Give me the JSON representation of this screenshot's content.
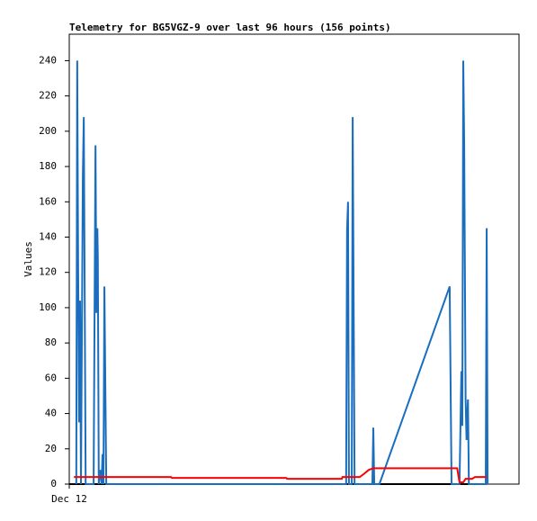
{
  "chart_data": {
    "type": "line",
    "title": "Telemetry for BG5VGZ-9 over last 96 hours (156 points)",
    "y_label": "Values",
    "xlim": [
      0,
      96
    ],
    "xticks": [
      {
        "value": 0,
        "label": "Dec 12"
      }
    ],
    "ylim": [
      0,
      255
    ],
    "yticks": [
      0,
      20,
      40,
      60,
      80,
      100,
      120,
      140,
      160,
      180,
      200,
      220,
      240
    ],
    "grid": false,
    "series": [
      {
        "color": "#000000",
        "x": [
          0,
          89.1
        ],
        "values": [
          0,
          0
        ]
      },
      {
        "color": "#1a6ebd",
        "x": [
          1.5,
          1.7,
          1.9,
          2.1,
          2.3,
          2.5,
          2.9,
          3.1,
          3.3,
          3.5,
          5.2,
          5.4,
          5.6,
          5.8,
          6.0,
          6.1,
          6.3,
          6.7,
          6.9,
          7.1,
          7.3,
          7.5,
          7.7,
          7.9,
          59.1,
          59.3,
          59.5,
          59.7,
          60.3,
          60.5,
          60.7,
          60.9,
          64.7,
          64.9,
          65.1,
          66.2,
          81.2,
          81.4,
          81.6,
          83.3,
          83.5,
          83.7,
          83.9,
          84.1,
          84.3,
          84.5,
          84.6,
          84.8,
          85.1,
          85.3,
          88.9,
          89.1,
          89.3
        ],
        "values": [
          0,
          240,
          120,
          35,
          104,
          0,
          174,
          208,
          104,
          0,
          0,
          97,
          192,
          97,
          145,
          128,
          0,
          8,
          0,
          17,
          0,
          112,
          56,
          0,
          0,
          144,
          160,
          0,
          0,
          208,
          104,
          0,
          0,
          32,
          0,
          0,
          112,
          56,
          0,
          0,
          32,
          64,
          33,
          240,
          192,
          97,
          48,
          25,
          48,
          0,
          0,
          145,
          0
        ]
      },
      {
        "color": "#ff0000",
        "x": [
          1.0,
          21.7,
          21.9,
          46.3,
          46.5,
          58.2,
          58.3,
          62.0,
          63.0,
          63.9,
          64.9,
          82.8,
          83.3,
          84.1,
          84.6,
          86.0,
          86.6,
          89.1
        ],
        "values": [
          4,
          4,
          3.5,
          3.5,
          3,
          3,
          4,
          4,
          6,
          8,
          9,
          9,
          1,
          1,
          3,
          3,
          4,
          4
        ]
      }
    ]
  }
}
